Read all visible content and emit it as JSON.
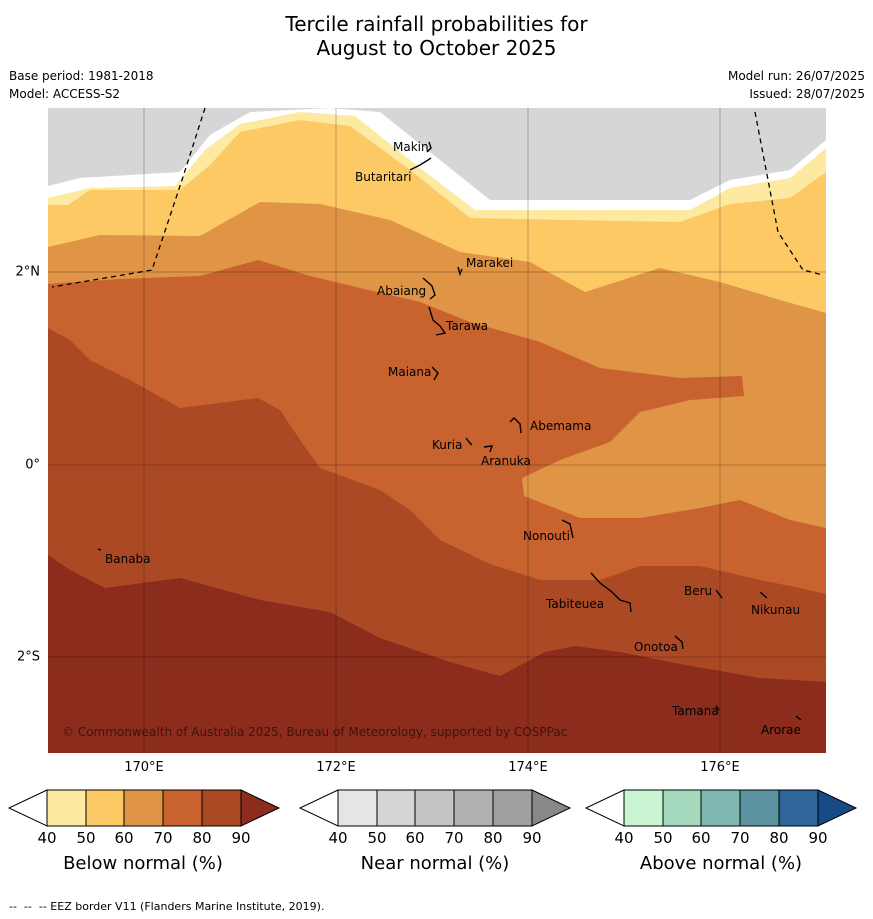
{
  "title_line1": "Tercile rainfall probabilities for",
  "title_line2": "August to October 2025",
  "meta": {
    "base_period": "Base period: 1981-2018",
    "model": "Model: ACCESS-S2",
    "model_run": "Model run: 26/07/2025",
    "issued": "Issued: 28/07/2025"
  },
  "axes": {
    "lon_labels": [
      "170°E",
      "172°E",
      "174°E",
      "176°E"
    ],
    "lat_labels": [
      "2°N",
      "0°",
      "2°S"
    ]
  },
  "islands": [
    "Makin",
    "Butaritari",
    "Marakei",
    "Abaiang",
    "Tarawa",
    "Maiana",
    "Abemama",
    "Kuria",
    "Aranuka",
    "Nonouti",
    "Banaba",
    "Beru",
    "Nikunau",
    "Tabiteuea",
    "Onotoa",
    "Tamana",
    "Arorae"
  ],
  "copyright": "© Commonwealth of Australia 2025, Bureau of Meteorology, supported by COSPPac",
  "colorbars": [
    {
      "title": "Below normal (%)",
      "ticks": [
        "40",
        "50",
        "60",
        "70",
        "80",
        "90"
      ],
      "colors": [
        "#ffffff",
        "#fde9a0",
        "#fcc964",
        "#e09445",
        "#c8622e",
        "#ac4925",
        "#8b2c1c"
      ]
    },
    {
      "title": "Near normal (%)",
      "ticks": [
        "40",
        "50",
        "60",
        "70",
        "80",
        "90"
      ],
      "colors": [
        "#ffffff",
        "#e5e5e5",
        "#d4d4d4",
        "#c5c5c5",
        "#b1b1b1",
        "#a0a0a0",
        "#888888"
      ]
    },
    {
      "title": "Above normal (%)",
      "ticks": [
        "40",
        "50",
        "60",
        "70",
        "80",
        "90"
      ],
      "colors": [
        "#ffffff",
        "#c9f5d2",
        "#a5d9bd",
        "#7fb8b1",
        "#5c93a1",
        "#2f6599",
        "#184b85"
      ]
    }
  ],
  "footer": "--  --  -- EEZ border V11 (Flanders Marine Institute, 2019)."
}
